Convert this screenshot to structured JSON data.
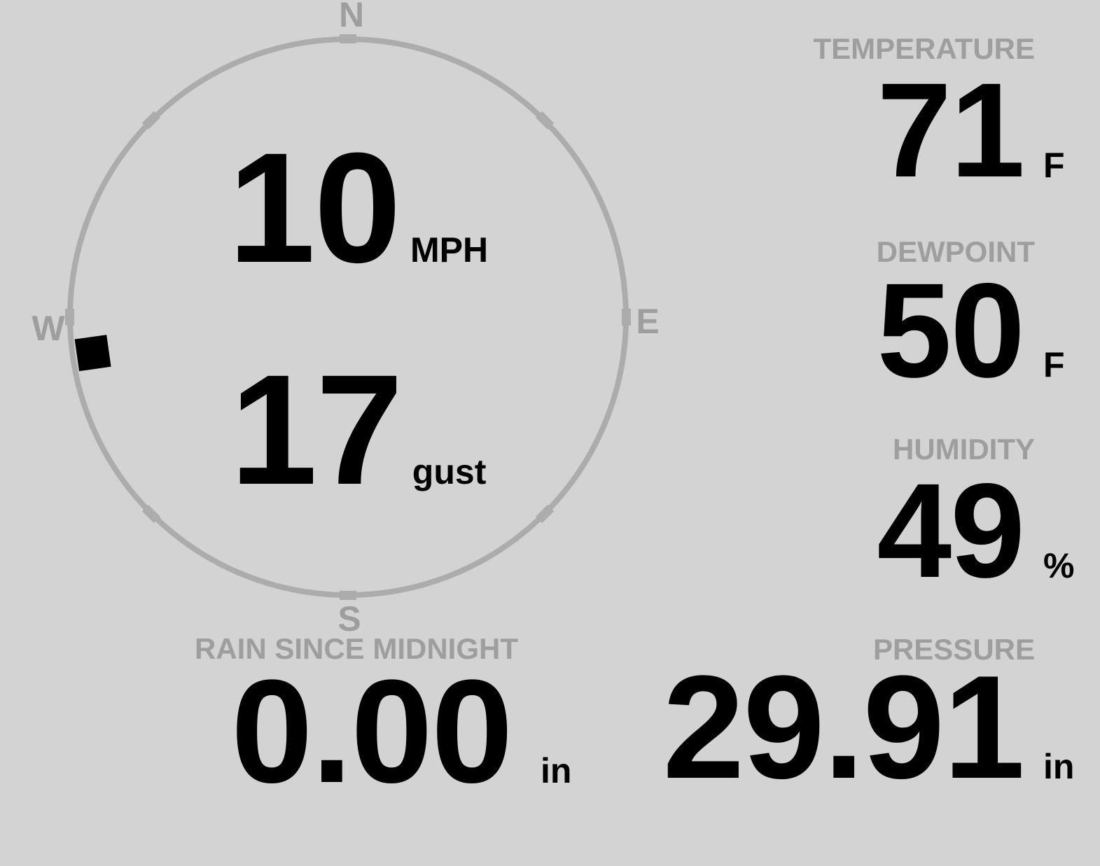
{
  "wind_gauge": {
    "compass": {
      "north": "N",
      "east": "E",
      "south": "S",
      "west": "W"
    },
    "speed": {
      "value": "10",
      "unit": "MPH"
    },
    "gust": {
      "value": "17",
      "unit": "gust"
    },
    "direction_deg": 262
  },
  "metrics": {
    "temperature": {
      "label": "TEMPERATURE",
      "value": "71",
      "unit": "F"
    },
    "dewpoint": {
      "label": "DEWPOINT",
      "value": "50",
      "unit": "F"
    },
    "humidity": {
      "label": "HUMIDITY",
      "value": "49",
      "unit": "%"
    },
    "pressure": {
      "label": "PRESSURE",
      "value": "29.91",
      "unit": "in"
    },
    "rain": {
      "label": "RAIN SINCE MIDNIGHT",
      "value": "0.00",
      "unit": "in"
    }
  },
  "colors": {
    "background": "#d3d3d3",
    "value-text": "#000000",
    "muted-text": "#9e9e9e",
    "ring": "#acacac",
    "marker": "#000000"
  }
}
